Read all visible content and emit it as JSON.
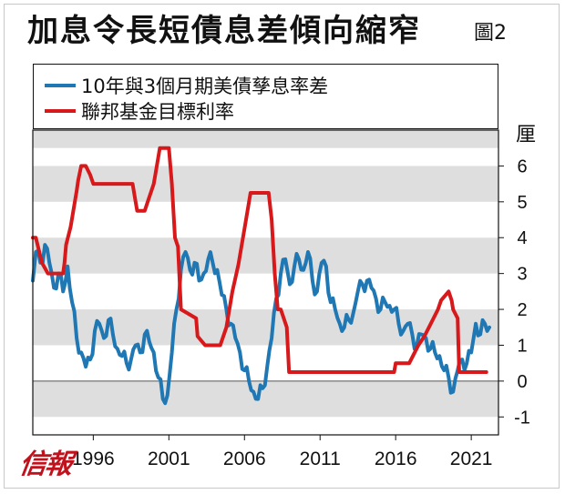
{
  "header": {
    "title": "加息令長短債息差傾向縮窄",
    "figure_label": "圖2"
  },
  "legend": [
    {
      "label": "10年與3個月期美債孳息率差",
      "color": "#1f78b4"
    },
    {
      "label": "聯邦基金目標利率",
      "color": "#d7191c"
    }
  ],
  "unit_label": "厘",
  "logo_text": "信報",
  "chart_data": {
    "type": "line",
    "title": "加息令長短債息差傾向縮窄",
    "xlabel": "",
    "ylabel": "厘",
    "xlim": [
      1992.0,
      2022.8
    ],
    "ylim": [
      -1.5,
      7
    ],
    "x_ticks": [
      1996,
      2001,
      2006,
      2011,
      2016,
      2021
    ],
    "x_tick_labels": [
      "1996",
      "2001",
      "2006",
      "2011",
      "2016",
      "2021"
    ],
    "y_ticks": [
      -1,
      0,
      1,
      2,
      3,
      4,
      5,
      6
    ],
    "y_tick_labels": [
      "-1",
      "0",
      "1",
      "2",
      "3",
      "4",
      "5",
      "6"
    ],
    "band_color": "#dedede",
    "series": [
      {
        "name": "10年與3個月期美債孳息率差",
        "color": "#1f78b4",
        "x": [
          1992.0,
          1992.2,
          1992.5,
          1992.8,
          1993.1,
          1993.4,
          1993.7,
          1994.0,
          1994.3,
          1994.6,
          1994.9,
          1995.2,
          1995.5,
          1995.8,
          1996.1,
          1996.4,
          1996.7,
          1997.0,
          1997.3,
          1997.6,
          1997.9,
          1998.2,
          1998.5,
          1998.8,
          1999.1,
          1999.4,
          1999.7,
          2000.0,
          2000.3,
          2000.6,
          2000.9,
          2001.2,
          2001.5,
          2001.8,
          2002.1,
          2002.4,
          2002.7,
          2003.0,
          2003.3,
          2003.6,
          2003.9,
          2004.2,
          2004.5,
          2004.8,
          2005.1,
          2005.4,
          2005.7,
          2006.0,
          2006.3,
          2006.6,
          2006.9,
          2007.2,
          2007.5,
          2007.8,
          2008.1,
          2008.4,
          2008.7,
          2009.0,
          2009.3,
          2009.6,
          2009.9,
          2010.2,
          2010.5,
          2010.8,
          2011.1,
          2011.4,
          2011.7,
          2012.0,
          2012.3,
          2012.6,
          2012.9,
          2013.2,
          2013.5,
          2013.8,
          2014.1,
          2014.4,
          2014.7,
          2015.0,
          2015.3,
          2015.6,
          2015.9,
          2016.2,
          2016.5,
          2016.8,
          2017.1,
          2017.4,
          2017.7,
          2018.0,
          2018.3,
          2018.6,
          2018.9,
          2019.2,
          2019.5,
          2019.8,
          2020.1,
          2020.4,
          2020.7,
          2021.0,
          2021.3,
          2021.6,
          2021.9,
          2022.2
        ],
        "y": [
          2.8,
          3.6,
          3.3,
          3.8,
          3.3,
          2.6,
          3.0,
          2.5,
          3.2,
          2.2,
          1.2,
          0.8,
          0.4,
          0.6,
          1.4,
          1.6,
          1.2,
          1.7,
          1.3,
          0.9,
          0.7,
          0.5,
          0.6,
          1.0,
          0.8,
          1.3,
          1.1,
          0.8,
          0.1,
          -0.5,
          -0.4,
          0.8,
          2.0,
          3.1,
          3.6,
          3.1,
          3.3,
          2.8,
          3.0,
          3.4,
          3.3,
          3.1,
          2.4,
          2.0,
          1.6,
          1.2,
          0.8,
          0.3,
          0.0,
          -0.3,
          -0.5,
          -0.2,
          0.4,
          1.2,
          2.3,
          3.0,
          3.4,
          2.7,
          3.2,
          3.4,
          3.1,
          3.6,
          2.8,
          2.5,
          3.3,
          3.2,
          2.2,
          2.0,
          1.6,
          1.5,
          1.7,
          1.9,
          2.5,
          2.7,
          2.8,
          2.6,
          2.3,
          2.0,
          2.2,
          2.1,
          2.0,
          1.6,
          1.4,
          1.6,
          1.3,
          1.0,
          1.3,
          1.2,
          0.9,
          0.8,
          0.7,
          0.3,
          0.1,
          -0.3,
          0.3,
          0.6,
          0.5,
          0.8,
          1.6,
          1.3,
          1.6,
          1.5
        ]
      },
      {
        "name": "聯邦基金目標利率",
        "color": "#d7191c",
        "x": [
          1992.0,
          1992.2,
          1992.6,
          1993.0,
          1994.0,
          1994.1,
          1994.2,
          1994.5,
          1994.7,
          1994.9,
          1995.0,
          1995.2,
          1995.5,
          1995.8,
          1996.0,
          1997.0,
          1997.2,
          1998.6,
          1998.8,
          1998.9,
          1999.4,
          1999.6,
          1999.8,
          2000.0,
          2000.1,
          2000.4,
          2001.0,
          2001.2,
          2001.4,
          2001.6,
          2001.8,
          2002.8,
          2002.9,
          2003.4,
          2004.4,
          2004.8,
          2005.2,
          2005.6,
          2006.0,
          2006.4,
          2007.6,
          2007.8,
          2008.0,
          2008.2,
          2008.4,
          2008.8,
          2008.95,
          2015.9,
          2016.0,
          2016.9,
          2017.2,
          2017.5,
          2017.9,
          2018.2,
          2018.5,
          2018.8,
          2019.0,
          2019.5,
          2019.7,
          2019.8,
          2020.1,
          2020.2,
          2022.0
        ],
        "y": [
          4.0,
          4.0,
          3.3,
          3.0,
          3.0,
          3.3,
          3.8,
          4.3,
          4.8,
          5.3,
          5.6,
          6.0,
          6.0,
          5.75,
          5.5,
          5.5,
          5.5,
          5.5,
          5.0,
          4.75,
          4.75,
          5.0,
          5.25,
          5.5,
          5.75,
          6.5,
          6.5,
          5.5,
          4.0,
          3.75,
          2.0,
          1.75,
          1.25,
          1.0,
          1.0,
          1.5,
          2.5,
          3.25,
          4.25,
          5.25,
          5.25,
          4.5,
          3.0,
          2.0,
          2.0,
          1.5,
          0.25,
          0.25,
          0.5,
          0.5,
          0.75,
          1.0,
          1.25,
          1.5,
          1.75,
          2.0,
          2.25,
          2.5,
          2.25,
          2.0,
          1.75,
          0.25,
          0.25
        ]
      }
    ]
  }
}
